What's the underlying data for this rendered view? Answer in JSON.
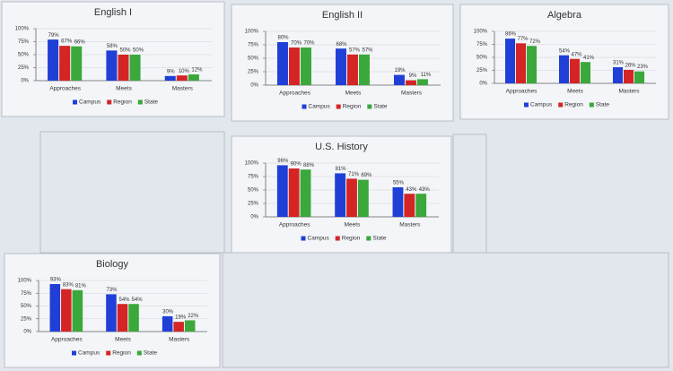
{
  "chart_data": [
    {
      "type": "bar",
      "title": "English I",
      "categories": [
        "Approaches",
        "Meets",
        "Masters"
      ],
      "series": [
        {
          "name": "Campus",
          "color": "#1f3fd6",
          "values": [
            79,
            58,
            9
          ],
          "value_labels": [
            "79%",
            "58%",
            "9%"
          ]
        },
        {
          "name": "Region",
          "color": "#d42424",
          "values": [
            67,
            50,
            10
          ],
          "value_labels": [
            "67%",
            "50%",
            "10%"
          ]
        },
        {
          "name": "State",
          "color": "#3aa83a",
          "values": [
            66,
            50,
            12
          ],
          "value_labels": [
            "66%",
            "50%",
            "12%"
          ]
        }
      ],
      "ylim": [
        0,
        100
      ],
      "yticks": [
        {
          "value": 0,
          "label": "0%"
        },
        {
          "value": 25,
          "label": "25%"
        },
        {
          "value": 50,
          "label": "50%"
        },
        {
          "value": 75,
          "label": "75%"
        },
        {
          "value": 100,
          "label": "100%"
        }
      ],
      "grid": true,
      "legend": "bottom"
    },
    {
      "type": "bar",
      "title": "English II",
      "categories": [
        "Approaches",
        "Meets",
        "Masters"
      ],
      "series": [
        {
          "name": "Campus",
          "color": "#1f3fd6",
          "values": [
            80,
            68,
            19
          ],
          "value_labels": [
            "80%",
            "68%",
            "19%"
          ]
        },
        {
          "name": "Region",
          "color": "#d42424",
          "values": [
            70,
            57,
            9
          ],
          "value_labels": [
            "70%",
            "57%",
            "9%"
          ]
        },
        {
          "name": "State",
          "color": "#3aa83a",
          "values": [
            70,
            57,
            11
          ],
          "value_labels": [
            "70%",
            "57%",
            "11%"
          ]
        }
      ],
      "ylim": [
        0,
        100
      ],
      "yticks": [
        {
          "value": 0,
          "label": "0%"
        },
        {
          "value": 25,
          "label": "25%"
        },
        {
          "value": 50,
          "label": "50%"
        },
        {
          "value": 75,
          "label": "75%"
        },
        {
          "value": 100,
          "label": "100%"
        }
      ],
      "grid": true,
      "legend": "bottom"
    },
    {
      "type": "bar",
      "title": "Algebra",
      "categories": [
        "Approaches",
        "Meets",
        "Masters"
      ],
      "series": [
        {
          "name": "Campus",
          "color": "#1f3fd6",
          "values": [
            86,
            54,
            31
          ],
          "value_labels": [
            "86%",
            "54%",
            "31%"
          ]
        },
        {
          "name": "Region",
          "color": "#d42424",
          "values": [
            77,
            47,
            26
          ],
          "value_labels": [
            "77%",
            "47%",
            "26%"
          ]
        },
        {
          "name": "State",
          "color": "#3aa83a",
          "values": [
            72,
            41,
            23
          ],
          "value_labels": [
            "72%",
            "41%",
            "23%"
          ]
        }
      ],
      "ylim": [
        0,
        100
      ],
      "yticks": [
        {
          "value": 0,
          "label": "0%"
        },
        {
          "value": 25,
          "label": "25%"
        },
        {
          "value": 50,
          "label": "50%"
        },
        {
          "value": 75,
          "label": "75%"
        },
        {
          "value": 100,
          "label": "100%"
        }
      ],
      "grid": true,
      "legend": "bottom"
    },
    {
      "type": "bar",
      "title": "U.S. History",
      "categories": [
        "Approaches",
        "Meets",
        "Masters"
      ],
      "series": [
        {
          "name": "Campus",
          "color": "#1f3fd6",
          "values": [
            96,
            81,
            55
          ],
          "value_labels": [
            "96%",
            "81%",
            "55%"
          ]
        },
        {
          "name": "Region",
          "color": "#d42424",
          "values": [
            90,
            71,
            43
          ],
          "value_labels": [
            "90%",
            "71%",
            "43%"
          ]
        },
        {
          "name": "State",
          "color": "#3aa83a",
          "values": [
            88,
            69,
            43
          ],
          "value_labels": [
            "88%",
            "69%",
            "43%"
          ]
        }
      ],
      "ylim": [
        0,
        100
      ],
      "yticks": [
        {
          "value": 0,
          "label": "0%"
        },
        {
          "value": 25,
          "label": "25%"
        },
        {
          "value": 50,
          "label": "50%"
        },
        {
          "value": 75,
          "label": "75%"
        },
        {
          "value": 100,
          "label": "100%"
        }
      ],
      "grid": true,
      "legend": "bottom"
    },
    {
      "type": "bar",
      "title": "Biology",
      "categories": [
        "Approaches",
        "Meets",
        "Masters"
      ],
      "series": [
        {
          "name": "Campus",
          "color": "#1f3fd6",
          "values": [
            93,
            73,
            30
          ],
          "value_labels": [
            "93%",
            "73%",
            "30%"
          ]
        },
        {
          "name": "Region",
          "color": "#d42424",
          "values": [
            83,
            54,
            19
          ],
          "value_labels": [
            "83%",
            "54%",
            "19%"
          ]
        },
        {
          "name": "State",
          "color": "#3aa83a",
          "values": [
            81,
            54,
            22
          ],
          "value_labels": [
            "81%",
            "54%",
            "22%"
          ]
        }
      ],
      "ylim": [
        0,
        100
      ],
      "yticks": [
        {
          "value": 0,
          "label": "0%"
        },
        {
          "value": 25,
          "label": "25%"
        },
        {
          "value": 50,
          "label": "50%"
        },
        {
          "value": 75,
          "label": "75%"
        },
        {
          "value": 100,
          "label": "100%"
        }
      ],
      "grid": true,
      "legend": "bottom"
    }
  ]
}
